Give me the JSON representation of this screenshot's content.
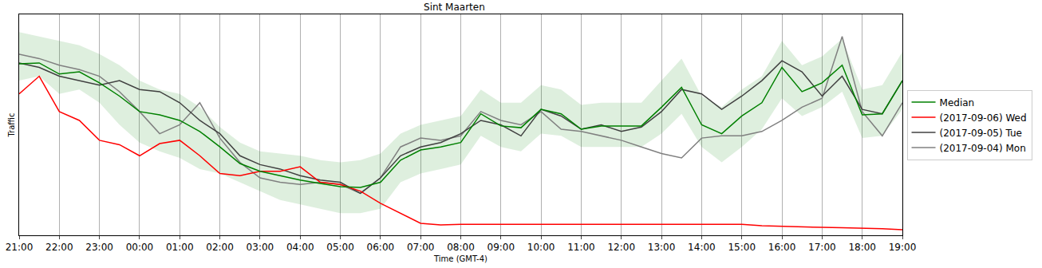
{
  "chart_data": {
    "type": "line",
    "title": "Sint Maarten",
    "x_label": "Time (GMT-4)",
    "y_label": "Traffic",
    "categories": [
      "21:00",
      null,
      "22:00",
      null,
      "23:00",
      null,
      "00:00",
      null,
      "01:00",
      null,
      "02:00",
      null,
      "03:00",
      null,
      "04:00",
      null,
      "05:00",
      null,
      "06:00",
      null,
      "07:00",
      null,
      "08:00",
      null,
      "09:00",
      null,
      "10:00",
      null,
      "11:00",
      null,
      "12:00",
      null,
      "13:00",
      null,
      "14:00",
      null,
      "15:00",
      null,
      "16:00",
      null,
      "17:00",
      null,
      "18:00",
      null,
      "19:00"
    ],
    "ylim": [
      0,
      100
    ],
    "tick_labels": "x",
    "grid": "x",
    "legend": "right",
    "series": [
      {
        "name": "(2017-09-04) Mon",
        "color": "#808080",
        "values": [
          82,
          80,
          77,
          75,
          72,
          65,
          56,
          46,
          50,
          60,
          44,
          33,
          26,
          24,
          23,
          24,
          23,
          19,
          26,
          40,
          44,
          43,
          45,
          56,
          52,
          50,
          56,
          48,
          47,
          45,
          43,
          40,
          37,
          35,
          44,
          45,
          45,
          47,
          52,
          58,
          62,
          90,
          56,
          45,
          60
        ]
      },
      {
        "name": "(2017-09-05) Tue",
        "color": "#404040",
        "values": [
          78,
          76,
          72,
          70,
          68,
          70,
          66,
          65,
          60,
          52,
          46,
          36,
          32,
          30,
          27,
          25,
          24,
          19,
          26,
          36,
          40,
          42,
          46,
          52,
          50,
          45,
          57,
          54,
          48,
          50,
          47,
          49,
          56,
          66,
          64,
          57,
          63,
          70,
          79,
          74,
          63,
          72,
          57,
          55,
          70
        ]
      },
      {
        "name": "(2017-09-06) Wed",
        "color": "#ff0000",
        "values": [
          64,
          72,
          56,
          52,
          43,
          41,
          36,
          41.5,
          43,
          36,
          28,
          27,
          29,
          29,
          31,
          24,
          23,
          20,
          14.5,
          10,
          5.4,
          4.7,
          5,
          5,
          5,
          5,
          5,
          5,
          5,
          5,
          5,
          5,
          5,
          5,
          5,
          5,
          5,
          4.3,
          4,
          3.8,
          3.6,
          3.4,
          3.2,
          3,
          2.5
        ]
      },
      {
        "name": "Median",
        "color": "#008000",
        "values": [
          77.6,
          78,
          73,
          74,
          69,
          63,
          56,
          54.5,
          52,
          47,
          40,
          32.5,
          29,
          27,
          25,
          23.5,
          22,
          21.7,
          24,
          34,
          38.6,
          40,
          42,
          55,
          49.5,
          48.7,
          57,
          55,
          48,
          49.5,
          49.5,
          49.5,
          58,
          67,
          50,
          46,
          54,
          60,
          76,
          65,
          69,
          77,
          54.5,
          55,
          70
        ],
        "lower": [
          70,
          72,
          64,
          66,
          60,
          50,
          42,
          38,
          35,
          30,
          28,
          24,
          20,
          16,
          14,
          12,
          10,
          10,
          12,
          24,
          28,
          30,
          32,
          45,
          40,
          38,
          46,
          45,
          40,
          40,
          40,
          40,
          46,
          55,
          40,
          33,
          40,
          48,
          62,
          54,
          58,
          65,
          44,
          45,
          57
        ],
        "upper": [
          92,
          90,
          88,
          86,
          82,
          77,
          70,
          66,
          64,
          58,
          49,
          42,
          38,
          37,
          36,
          34,
          33,
          34,
          37,
          46,
          50,
          52,
          54,
          66,
          60,
          60,
          68,
          66,
          59,
          60,
          60,
          60,
          70,
          80,
          63,
          58,
          66,
          72,
          88,
          77,
          81,
          89,
          66,
          68,
          83
        ]
      }
    ]
  }
}
